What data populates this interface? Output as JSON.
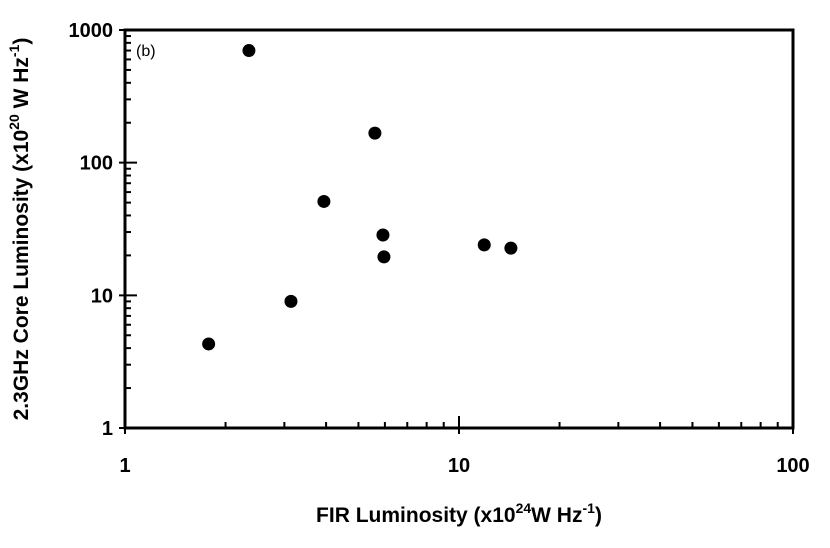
{
  "chart_data": {
    "type": "scatter",
    "xlabel_parts": [
      "FIR Luminosity (x10",
      "24",
      "W Hz",
      "-1",
      ")"
    ],
    "ylabel_parts": [
      "2.3GHz Core Luminosity (x10",
      "20",
      " W Hz",
      "-1",
      ")"
    ],
    "annotation": "(b)",
    "x": [
      1.78,
      2.35,
      3.14,
      3.94,
      5.6,
      5.92,
      5.96,
      11.9,
      14.3
    ],
    "series": [
      {
        "color": "#000000",
        "values": [
          4.3,
          700,
          9,
          51,
          167,
          28.5,
          19.5,
          24,
          22.7
        ]
      }
    ],
    "xlim": [
      1,
      100
    ],
    "ylim": [
      1,
      1000
    ],
    "xticks": [
      1,
      10,
      100
    ],
    "yticks": [
      1,
      10,
      100,
      1000
    ],
    "xlog": true,
    "ylog": true,
    "minor_ticks": true,
    "grid": false
  }
}
